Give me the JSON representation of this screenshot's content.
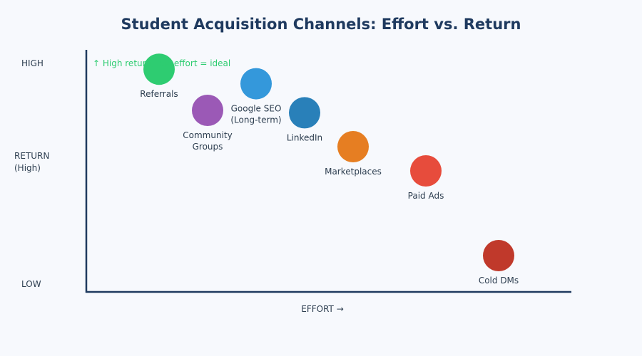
{
  "chart_data": {
    "type": "scatter",
    "title": "Student Acquisition Channels: Effort vs. Return",
    "xlabel": "EFFORT →",
    "ylabel": [
      "RETURN",
      "(High)"
    ],
    "y_tick_labels": {
      "high": "HIGH",
      "low": "LOW"
    },
    "annotation": "↑ High return, low effort = ideal",
    "annotation_color": "#2ecc71",
    "axis_color": "#1f3a5f",
    "xlim": [
      0,
      100
    ],
    "ylim": [
      0,
      100
    ],
    "grid": false,
    "legend": "none",
    "points": [
      {
        "label": [
          "Referrals"
        ],
        "x": 15,
        "y": 92,
        "color": "#2ecc71"
      },
      {
        "label": [
          "Google SEO",
          "(Long-term)"
        ],
        "x": 35,
        "y": 86,
        "color": "#3498db"
      },
      {
        "label": [
          "Community",
          "Groups"
        ],
        "x": 25,
        "y": 75,
        "color": "#9b59b6"
      },
      {
        "label": [
          "LinkedIn"
        ],
        "x": 45,
        "y": 74,
        "color": "#2980b9"
      },
      {
        "label": [
          "Marketplaces"
        ],
        "x": 55,
        "y": 60,
        "color": "#e67e22"
      },
      {
        "label": [
          "Paid Ads"
        ],
        "x": 70,
        "y": 50,
        "color": "#e74c3c"
      },
      {
        "label": [
          "Cold DMs"
        ],
        "x": 85,
        "y": 15,
        "color": "#c0392b"
      }
    ]
  }
}
